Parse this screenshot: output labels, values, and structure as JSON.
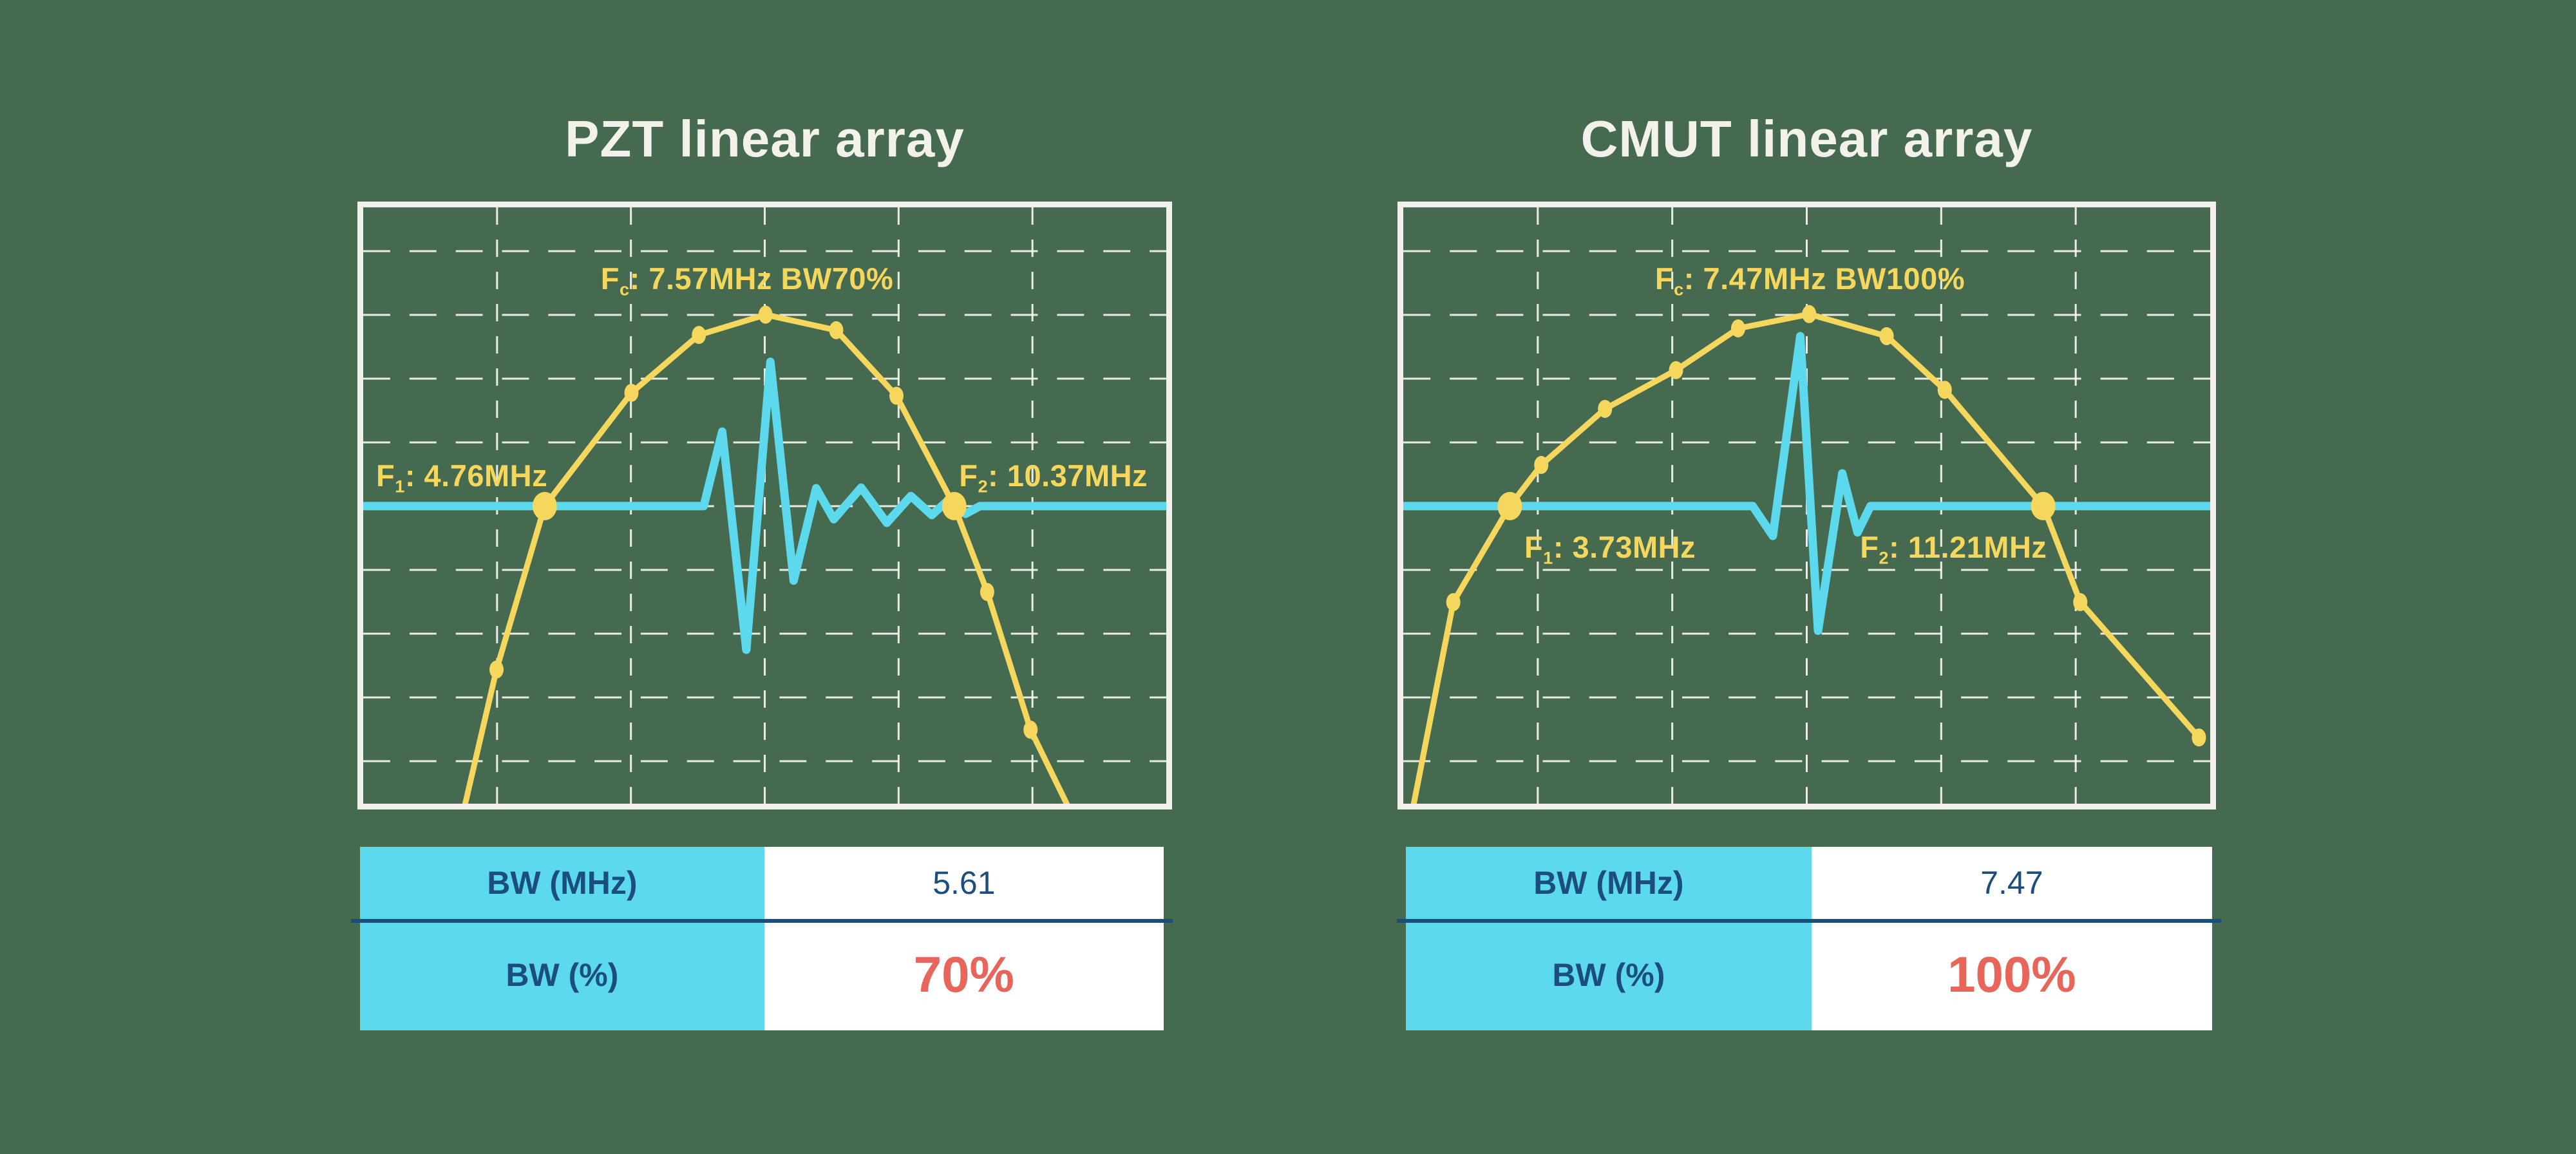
{
  "colors": {
    "background": "#456A50",
    "curve_yellow": "#F5D75E",
    "pulse_cyan": "#5CD9EC",
    "frame_white": "#F1F0EC",
    "grid_white": "#F7F6F1",
    "table_header_cyan": "#5CD9EC",
    "table_value_bg": "#FFFFFF",
    "navy_text": "#1B4E7D",
    "red_value": "#E8655A",
    "title_white": "#F3F1EC"
  },
  "chart_data": [
    {
      "type": "line",
      "title": "PZT linear array",
      "center_frequency_mhz": 7.57,
      "f1_mhz": 4.76,
      "f2_mhz": 10.37,
      "bandwidth_mhz": 5.61,
      "bandwidth_pct": 70,
      "legend": "yellow = frequency spectrum with point markers, cyan = pulse echo at -6 dB baseline",
      "labels": {
        "fc": {
          "pre": "F",
          "sub": "c",
          "rest": ": 7.57MHz BW70%"
        },
        "f1": {
          "pre": "F",
          "sub": "1",
          "rest": ": 4.76MHz"
        },
        "f2": {
          "pre": "F",
          "sub": "2",
          "rest": ": 10.37MHz"
        }
      },
      "baseline_y_norm": 0.501,
      "spectrum_points_norm": [
        [
          0.127,
          1.0
        ],
        [
          0.166,
          0.775
        ],
        [
          0.226,
          0.501
        ],
        [
          0.334,
          0.311
        ],
        [
          0.418,
          0.214
        ],
        [
          0.501,
          0.18
        ],
        [
          0.589,
          0.206
        ],
        [
          0.664,
          0.316
        ],
        [
          0.736,
          0.501
        ],
        [
          0.777,
          0.645
        ],
        [
          0.831,
          0.876
        ],
        [
          0.876,
          1.0
        ]
      ],
      "spectrum_markers_norm": [
        [
          0.166,
          0.775
        ],
        [
          0.334,
          0.311
        ],
        [
          0.418,
          0.214
        ],
        [
          0.501,
          0.18
        ],
        [
          0.589,
          0.206
        ],
        [
          0.664,
          0.316
        ],
        [
          0.777,
          0.645
        ],
        [
          0.831,
          0.876
        ]
      ],
      "spectrum_big_markers_norm": [
        [
          0.226,
          0.501
        ],
        [
          0.736,
          0.501
        ]
      ],
      "pulse_points_norm": [
        [
          0.0,
          0.501
        ],
        [
          0.424,
          0.501
        ],
        [
          0.447,
          0.376
        ],
        [
          0.477,
          0.742
        ],
        [
          0.507,
          0.259
        ],
        [
          0.536,
          0.626
        ],
        [
          0.564,
          0.471
        ],
        [
          0.586,
          0.523
        ],
        [
          0.62,
          0.47
        ],
        [
          0.652,
          0.529
        ],
        [
          0.682,
          0.484
        ],
        [
          0.708,
          0.516
        ],
        [
          0.73,
          0.489
        ],
        [
          0.75,
          0.514
        ],
        [
          0.768,
          0.501
        ],
        [
          1.0,
          0.501
        ]
      ],
      "table": {
        "rows": [
          {
            "label": "BW (MHz)",
            "value": "5.61"
          },
          {
            "label": "BW (%)",
            "value": "70%"
          }
        ]
      }
    },
    {
      "type": "line",
      "title": "CMUT linear array",
      "center_frequency_mhz": 7.47,
      "f1_mhz": 3.73,
      "f2_mhz": 11.21,
      "bandwidth_mhz": 7.47,
      "bandwidth_pct": 100,
      "legend": "yellow = frequency spectrum with point markers, cyan = pulse echo at -6 dB baseline",
      "labels": {
        "fc": {
          "pre": "F",
          "sub": "c",
          "rest": ": 7.47MHz BW100%"
        },
        "f1": {
          "pre": "F",
          "sub": "1",
          "rest": ": 3.73MHz"
        },
        "f2": {
          "pre": "F",
          "sub": "2",
          "rest": ": 11.21MHz"
        }
      },
      "baseline_y_norm": 0.501,
      "spectrum_points_norm": [
        [
          0.013,
          1.0
        ],
        [
          0.062,
          0.662
        ],
        [
          0.132,
          0.501
        ],
        [
          0.171,
          0.432
        ],
        [
          0.25,
          0.338
        ],
        [
          0.338,
          0.273
        ],
        [
          0.415,
          0.203
        ],
        [
          0.503,
          0.179
        ],
        [
          0.599,
          0.216
        ],
        [
          0.671,
          0.306
        ],
        [
          0.793,
          0.501
        ],
        [
          0.839,
          0.662
        ],
        [
          0.986,
          0.889
        ]
      ],
      "spectrum_markers_norm": [
        [
          0.062,
          0.662
        ],
        [
          0.171,
          0.432
        ],
        [
          0.25,
          0.338
        ],
        [
          0.338,
          0.273
        ],
        [
          0.415,
          0.203
        ],
        [
          0.503,
          0.179
        ],
        [
          0.599,
          0.216
        ],
        [
          0.671,
          0.306
        ],
        [
          0.839,
          0.662
        ],
        [
          0.986,
          0.889
        ]
      ],
      "spectrum_big_markers_norm": [
        [
          0.132,
          0.501
        ],
        [
          0.793,
          0.501
        ]
      ],
      "pulse_points_norm": [
        [
          0.0,
          0.501
        ],
        [
          0.433,
          0.501
        ],
        [
          0.458,
          0.551
        ],
        [
          0.492,
          0.216
        ],
        [
          0.514,
          0.71
        ],
        [
          0.544,
          0.446
        ],
        [
          0.563,
          0.545
        ],
        [
          0.579,
          0.501
        ],
        [
          1.0,
          0.501
        ]
      ],
      "table": {
        "rows": [
          {
            "label": "BW (MHz)",
            "value": "7.47"
          },
          {
            "label": "BW (%)",
            "value": "100%"
          }
        ]
      }
    }
  ]
}
